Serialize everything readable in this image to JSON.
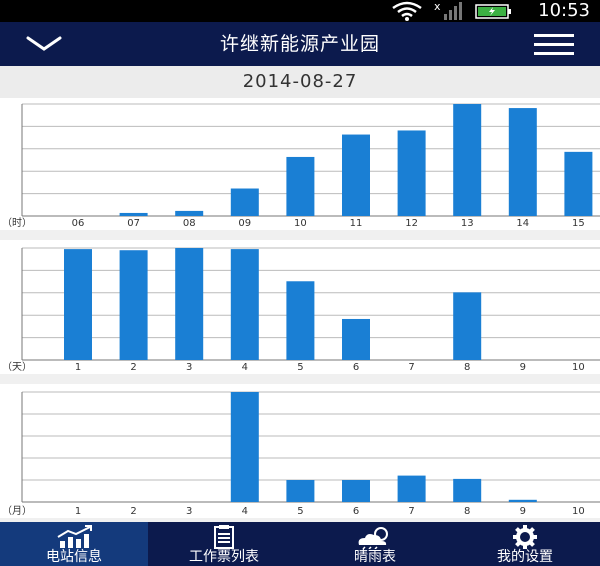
{
  "status_bar": {
    "time": "10:53"
  },
  "header": {
    "title": "许继新能源产业园",
    "back_icon": "chevron-down-icon",
    "menu_icon": "menu-icon"
  },
  "date": "2014-08-27",
  "colors": {
    "bar": "#1a7fd4",
    "header": "#0c1a4d",
    "active_tab": "#143a7c"
  },
  "chart_data": [
    {
      "type": "bar",
      "unit_label": "（时）",
      "categories": [
        "06",
        "07",
        "08",
        "09",
        "10",
        "11",
        "12",
        "13",
        "14",
        "15"
      ],
      "values": [
        0,
        3,
        5,
        27,
        58,
        80,
        84,
        110,
        106,
        63
      ],
      "ylim": [
        0,
        110
      ],
      "grid": true
    },
    {
      "type": "bar",
      "unit_label": "（天）",
      "categories": [
        "1",
        "2",
        "3",
        "4",
        "5",
        "6",
        "7",
        "8",
        "9",
        "10"
      ],
      "values": [
        100,
        99,
        101,
        100,
        71,
        37,
        0,
        61,
        0,
        0
      ],
      "ylim": [
        0,
        101
      ],
      "grid": true
    },
    {
      "type": "bar",
      "unit_label": "（月）",
      "categories": [
        "1",
        "2",
        "3",
        "4",
        "5",
        "6",
        "7",
        "8",
        "9",
        "10"
      ],
      "values": [
        0,
        0,
        0,
        100,
        20,
        20,
        24,
        21,
        2,
        0
      ],
      "ylim": [
        0,
        100
      ],
      "grid": true
    }
  ],
  "tabs": [
    {
      "label": "电站信息",
      "icon": "chart-icon",
      "active": true
    },
    {
      "label": "工作票列表",
      "icon": "clipboard-icon",
      "active": false
    },
    {
      "label": "晴雨表",
      "icon": "weather-cloud-icon",
      "active": false
    },
    {
      "label": "我的设置",
      "icon": "gear-icon",
      "active": false
    }
  ]
}
